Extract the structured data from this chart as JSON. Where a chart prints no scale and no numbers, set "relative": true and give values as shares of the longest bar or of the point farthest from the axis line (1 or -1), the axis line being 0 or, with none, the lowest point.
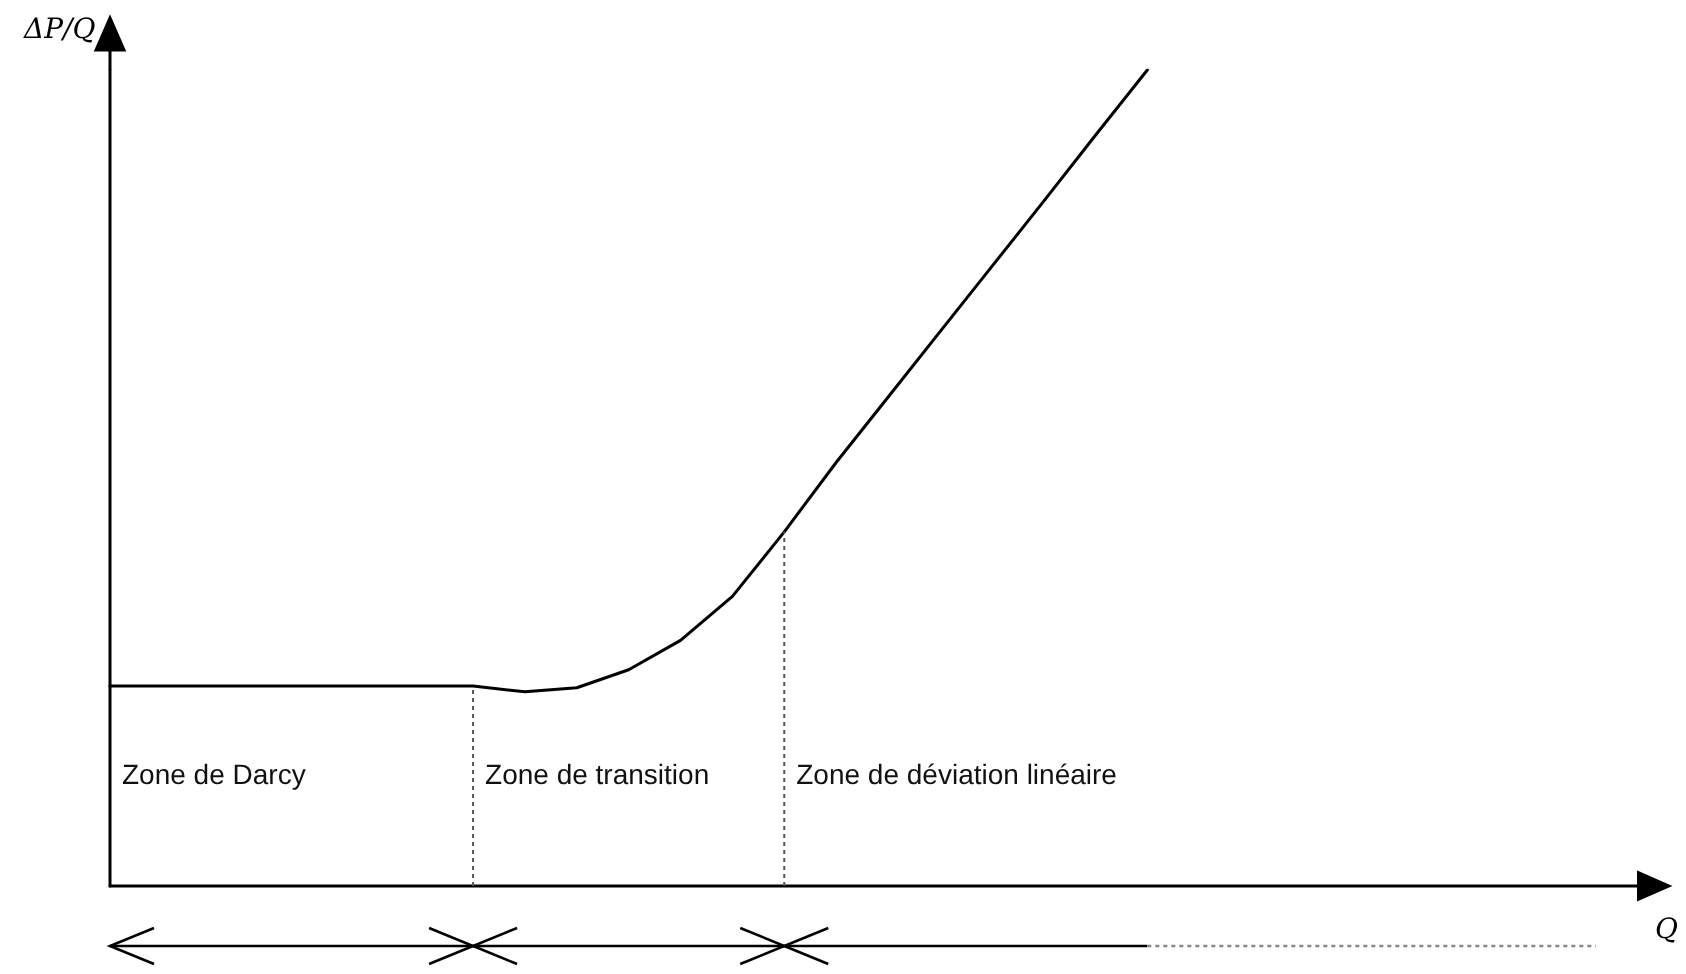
{
  "chart_data": {
    "type": "line",
    "relative": true,
    "xlabel": "Q",
    "ylabel": "ΔP/Q",
    "categories": [
      null,
      null,
      null,
      null,
      null,
      null,
      null,
      null,
      null,
      null,
      null,
      null,
      null,
      null,
      null,
      null,
      null,
      null,
      null,
      null,
      null,
      null,
      null,
      null,
      null,
      null,
      null,
      null,
      null,
      null,
      null
    ],
    "series": [
      {
        "color": "#000000",
        "values": [
          0.245,
          0.245,
          0.245,
          0.245,
          0.245,
          0.245,
          0.245,
          0.245,
          0.238,
          0.243,
          0.265,
          0.301,
          0.355,
          0.434,
          0.519,
          0.599,
          0.679,
          0.759,
          0.839,
          0.92,
          1,
          null,
          null,
          null,
          null,
          null,
          null,
          null,
          null,
          null,
          null
        ]
      }
    ],
    "annotations": [
      "Zone de Darcy",
      "Zone de transition",
      "Zone de déviation linéaire"
    ],
    "grid": false,
    "marker": "none",
    "line_style": "solid"
  }
}
